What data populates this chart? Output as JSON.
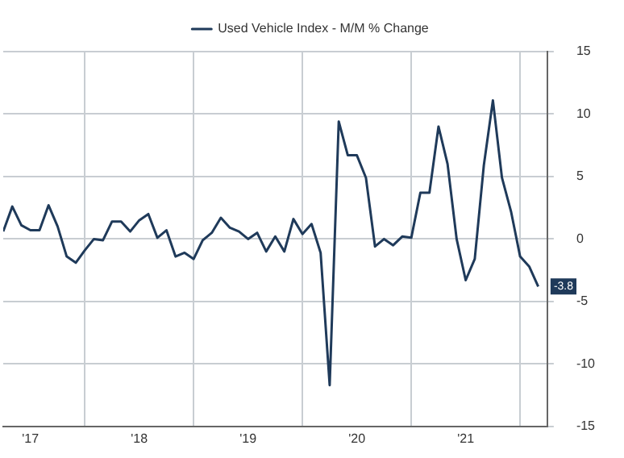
{
  "chart_data": {
    "type": "line",
    "legend": "top",
    "grid": true,
    "marker": "none",
    "line_style": "solid",
    "x": [
      "2017-04",
      "2017-05",
      "2017-06",
      "2017-07",
      "2017-08",
      "2017-09",
      "2017-10",
      "2017-11",
      "2017-12",
      "2018-01",
      "2018-02",
      "2018-03",
      "2018-04",
      "2018-05",
      "2018-06",
      "2018-07",
      "2018-08",
      "2018-09",
      "2018-10",
      "2018-11",
      "2018-12",
      "2019-01",
      "2019-02",
      "2019-03",
      "2019-04",
      "2019-05",
      "2019-06",
      "2019-07",
      "2019-08",
      "2019-09",
      "2019-10",
      "2019-11",
      "2019-12",
      "2020-01",
      "2020-02",
      "2020-03",
      "2020-04",
      "2020-05",
      "2020-06",
      "2020-07",
      "2020-08",
      "2020-09",
      "2020-10",
      "2020-11",
      "2020-12",
      "2021-01",
      "2021-02",
      "2021-03",
      "2021-04",
      "2021-05",
      "2021-06",
      "2021-07",
      "2021-08",
      "2021-09",
      "2021-10",
      "2021-11",
      "2021-12",
      "2022-01",
      "2022-02",
      "2022-03"
    ],
    "xlim": [
      "2017-04",
      "2022-04"
    ],
    "xticks": [
      {
        "value": "2017-07",
        "label": "'17"
      },
      {
        "value": "2018-01",
        "label": null
      },
      {
        "value": "2018-07",
        "label": "'18"
      },
      {
        "value": "2019-01",
        "label": null
      },
      {
        "value": "2019-07",
        "label": "'19"
      },
      {
        "value": "2020-01",
        "label": null
      },
      {
        "value": "2020-07",
        "label": "'20"
      },
      {
        "value": "2021-01",
        "label": null
      },
      {
        "value": "2021-07",
        "label": "'21"
      },
      {
        "value": "2022-01",
        "label": null
      }
    ],
    "ylim": [
      -15,
      15
    ],
    "yticks": [
      -15,
      -10,
      -5,
      0,
      5,
      10,
      15
    ],
    "series": [
      {
        "name": "Used Vehicle Index - M/M % Change",
        "color": "#1f3a5a",
        "values": [
          0.6,
          2.6,
          1.1,
          0.7,
          0.7,
          2.7,
          1.0,
          -1.4,
          -1.9,
          -0.9,
          0,
          -0.1,
          1.4,
          1.4,
          0.6,
          1.5,
          2.0,
          0.1,
          0.7,
          -1.4,
          -1.1,
          -1.6,
          -0.1,
          0.5,
          1.7,
          0.9,
          0.6,
          0,
          0.5,
          -1.0,
          0.2,
          -1.0,
          1.6,
          0.4,
          1.2,
          -1.1,
          -11.7,
          9.4,
          6.7,
          6.7,
          4.9,
          -0.6,
          0,
          -0.5,
          0.2,
          0.1,
          3.7,
          3.7,
          9.0,
          6.0,
          0,
          -3.3,
          -1.6,
          5.9,
          11.1,
          4.9,
          2.2,
          -1.4,
          -2.2,
          -3.8
        ],
        "value_labels": [
          null,
          null,
          null,
          null,
          null,
          null,
          null,
          null,
          null,
          null,
          null,
          null,
          null,
          null,
          null,
          null,
          null,
          null,
          null,
          null,
          null,
          null,
          null,
          null,
          null,
          null,
          null,
          null,
          null,
          null,
          null,
          null,
          null,
          null,
          null,
          null,
          null,
          null,
          null,
          null,
          null,
          null,
          null,
          null,
          null,
          null,
          null,
          null,
          null,
          null,
          null,
          null,
          null,
          null,
          null,
          null,
          null,
          null,
          null,
          "-3.8"
        ]
      }
    ]
  }
}
